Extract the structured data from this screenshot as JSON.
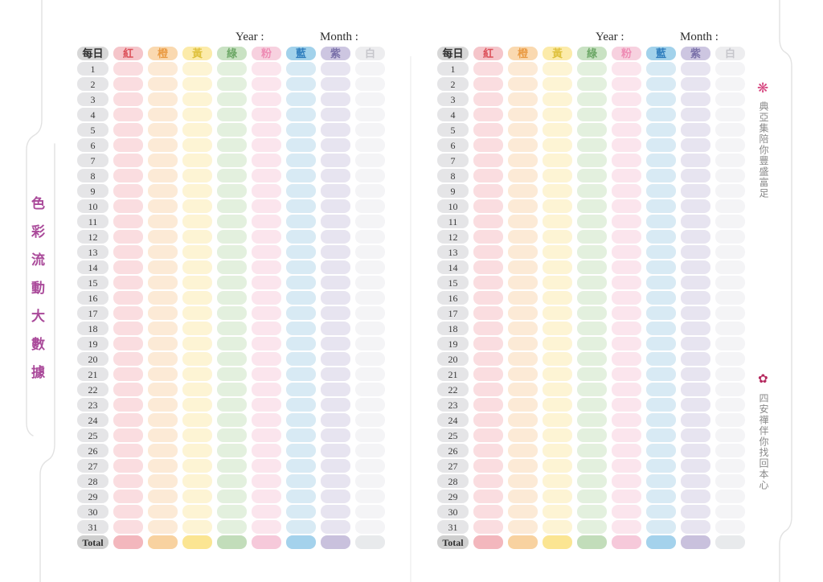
{
  "left_tab": {
    "label": "色彩流動大數據",
    "color": "#aa4a9a"
  },
  "right_tab": {
    "top_icon": "❋",
    "top_icon_color": "#d6457f",
    "top_text": "典亞集陪你豐盛富足",
    "bottom_icon": "✿",
    "bottom_icon_color": "#b5295e",
    "bottom_text": "四安禪伴你找回本心"
  },
  "pages": [
    {
      "year_label": "Year :",
      "month_label": "Month :"
    },
    {
      "year_label": "Year :",
      "month_label": "Month :"
    }
  ],
  "table": {
    "day_header": "每日",
    "total_label": "Total",
    "days": [
      "1",
      "2",
      "3",
      "4",
      "5",
      "6",
      "7",
      "8",
      "9",
      "10",
      "11",
      "12",
      "13",
      "14",
      "15",
      "16",
      "17",
      "18",
      "19",
      "20",
      "21",
      "22",
      "23",
      "24",
      "25",
      "26",
      "27",
      "28",
      "29",
      "30",
      "31"
    ],
    "day_col": {
      "header_bg": "#d7d7d7",
      "header_fg": "#2e2e2e",
      "cell_bg": "#e5e5e7",
      "cell_fg": "#3a3a3a",
      "total_bg": "#cfcfcf",
      "total_fg": "#2e2e2e"
    },
    "columns": [
      {
        "id": "red",
        "label": "紅",
        "header_bg": "#f5c5ca",
        "header_fg": "#dc5059",
        "cell_bg": "#fadde0",
        "total_bg": "#f3b7bd"
      },
      {
        "id": "orange",
        "label": "橙",
        "header_bg": "#fad9b0",
        "header_fg": "#ea9b43",
        "cell_bg": "#fcead6",
        "total_bg": "#f8d2a0"
      },
      {
        "id": "yellow",
        "label": "黃",
        "header_bg": "#fcebaa",
        "header_fg": "#dfc23f",
        "cell_bg": "#fdf4d4",
        "total_bg": "#fbe592"
      },
      {
        "id": "green",
        "label": "綠",
        "header_bg": "#c9e2c3",
        "header_fg": "#6da867",
        "cell_bg": "#e3f0de",
        "total_bg": "#c2ddba"
      },
      {
        "id": "pink",
        "label": "粉",
        "header_bg": "#f7d1df",
        "header_fg": "#ee8cb4",
        "cell_bg": "#fbe5ed",
        "total_bg": "#f6c9da"
      },
      {
        "id": "blue",
        "label": "藍",
        "header_bg": "#a2d2eb",
        "header_fg": "#2e7dbd",
        "cell_bg": "#d8eaf4",
        "total_bg": "#a4d2ec"
      },
      {
        "id": "purple",
        "label": "紫",
        "header_bg": "#cdc6e1",
        "header_fg": "#7b72aa",
        "cell_bg": "#e7e4f0",
        "total_bg": "#c9c1dd"
      },
      {
        "id": "white",
        "label": "白",
        "header_bg": "#ededef",
        "header_fg": "#c6c6cb",
        "cell_bg": "#f4f4f6",
        "total_bg": "#e8eaec"
      }
    ]
  },
  "edge_colors": {
    "page_line": "#e2e2e2",
    "gutter_line": "#ededed"
  }
}
